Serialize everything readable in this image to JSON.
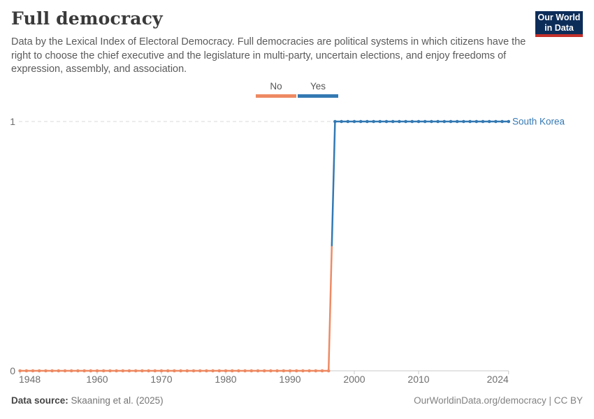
{
  "header": {
    "title": "Full democracy",
    "subtitle": "Data by the Lexical Index of Electoral Democracy. Full democracies are political systems in which citizens have the right to choose the chief executive and the legislature in multi-party, uncertain elections, and enjoy freedoms of expression, assembly, and association.",
    "logo": {
      "line1": "Our World",
      "line2": "in Data"
    }
  },
  "colors": {
    "no": "#EE8A63",
    "yes": "#3379B3",
    "entity": "#3579B3",
    "logo_bg": "#0D2D59",
    "logo_red": "#C5302B"
  },
  "chart_data": {
    "type": "line",
    "title": "Full democracy",
    "entity": "South Korea",
    "xlabel": "",
    "ylabel": "",
    "x_range": [
      1948,
      2024
    ],
    "ylim": [
      0,
      1
    ],
    "x_ticks": [
      1948,
      1960,
      1970,
      1980,
      1990,
      2000,
      2010,
      2024
    ],
    "y_ticks": [
      0,
      1
    ],
    "grid": "dashed horizontal gridline at y=1, solid axis at y=0",
    "legend_position": "top-center",
    "series": [
      {
        "name": "No",
        "color": "#EE8A63",
        "value": 0,
        "start_year": 1948,
        "end_year": 1996
      },
      {
        "name": "Yes",
        "color": "#3379B3",
        "value": 1,
        "start_year": 1997,
        "end_year": 2024
      }
    ],
    "transition": {
      "from_year": 1996,
      "from_value": 0,
      "to_year": 1997,
      "to_value": 1
    }
  },
  "footer": {
    "source_label": "Data source:",
    "source_value": "Skaaning et al. (2025)",
    "credit": "OurWorldinData.org/democracy | CC BY"
  }
}
